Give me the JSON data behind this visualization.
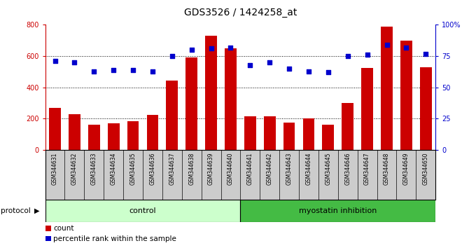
{
  "title": "GDS3526 / 1424258_at",
  "samples": [
    "GSM344631",
    "GSM344632",
    "GSM344633",
    "GSM344634",
    "GSM344635",
    "GSM344636",
    "GSM344637",
    "GSM344638",
    "GSM344639",
    "GSM344640",
    "GSM344641",
    "GSM344642",
    "GSM344643",
    "GSM344644",
    "GSM344645",
    "GSM344646",
    "GSM344647",
    "GSM344648",
    "GSM344649",
    "GSM344650"
  ],
  "counts": [
    270,
    230,
    160,
    170,
    185,
    225,
    445,
    590,
    730,
    650,
    215,
    215,
    175,
    200,
    160,
    300,
    525,
    790,
    700,
    530
  ],
  "percentile": [
    71,
    70,
    63,
    64,
    64,
    63,
    75,
    80,
    81,
    82,
    68,
    70,
    65,
    63,
    62,
    75,
    76,
    84,
    82,
    77
  ],
  "control_count": 10,
  "bar_color": "#cc0000",
  "dot_color": "#0000cc",
  "left_axis_color": "#cc0000",
  "right_axis_color": "#0000cc",
  "ylim_left": [
    0,
    800
  ],
  "ylim_right": [
    0,
    100
  ],
  "left_ticks": [
    0,
    200,
    400,
    600,
    800
  ],
  "right_ticks": [
    0,
    25,
    50,
    75,
    100
  ],
  "right_tick_labels": [
    "0",
    "25",
    "50",
    "75",
    "100%"
  ],
  "protocol_label": "protocol",
  "control_label": "control",
  "treatment_label": "myostatin inhibition",
  "legend_count": "count",
  "legend_percentile": "percentile rank within the sample",
  "control_bg": "#ccffcc",
  "treatment_bg": "#44bb44",
  "xlabel_area_bg": "#cccccc",
  "title_fontsize": 10,
  "tick_fontsize": 7,
  "sample_fontsize": 5.5
}
